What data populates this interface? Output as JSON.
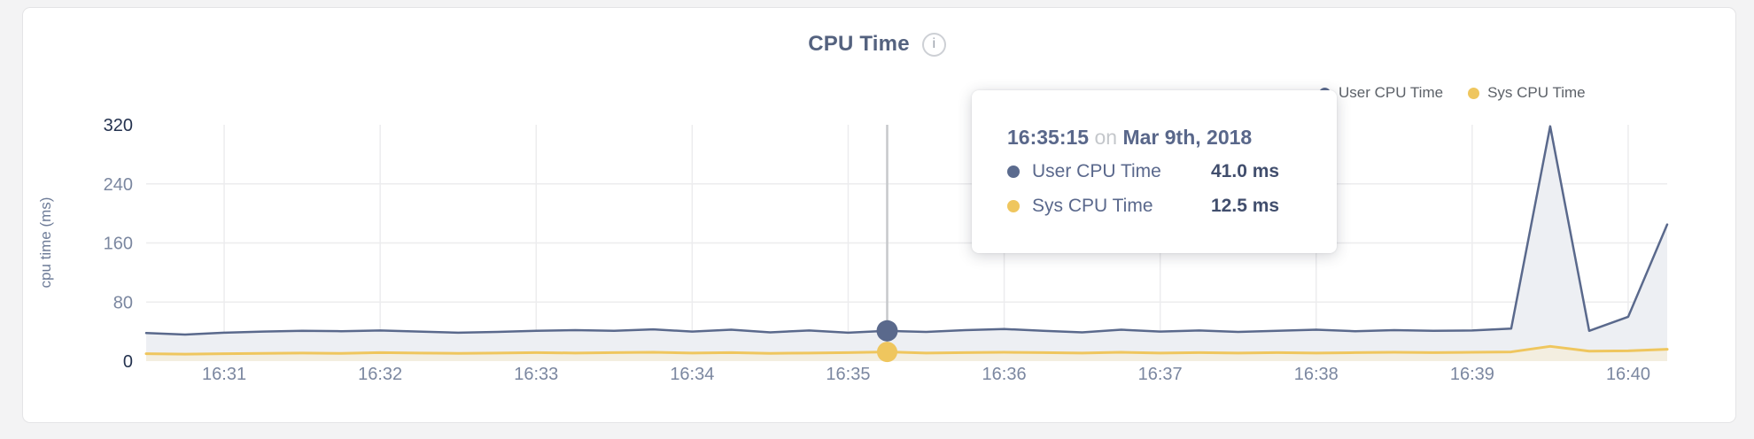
{
  "card": {
    "title": "CPU Time",
    "info_icon": "i"
  },
  "legend": [
    {
      "label": "User CPU Time",
      "color": "#5b6b8e"
    },
    {
      "label": "Sys CPU Time",
      "color": "#efc65e"
    }
  ],
  "axes": {
    "y_label": "cpu time (ms)",
    "y_ticks": [
      0,
      80,
      160,
      240,
      320
    ],
    "y_tick_dark_color": "#24324f",
    "y_tick_light_color": "#7b87a0",
    "x_ticks": [
      "16:31",
      "16:32",
      "16:33",
      "16:34",
      "16:35",
      "16:36",
      "16:37",
      "16:38",
      "16:39",
      "16:40"
    ],
    "grid_color": "#ececee",
    "hover_line_color": "#c6c8cb"
  },
  "tooltip": {
    "time": "16:35:15",
    "connector": "on",
    "date": "Mar 9th, 2018",
    "rows": [
      {
        "label": "User CPU Time",
        "value": "41.0 ms",
        "color": "#5b6b8e"
      },
      {
        "label": "Sys CPU Time",
        "value": "12.5 ms",
        "color": "#efc65e"
      }
    ]
  },
  "chart_data": {
    "type": "area",
    "title": "CPU Time",
    "ylabel": "cpu time (ms)",
    "ylim": [
      0,
      320
    ],
    "grid": true,
    "legend_position": "top-right",
    "x_ticks": [
      "16:31",
      "16:32",
      "16:33",
      "16:34",
      "16:35",
      "16:36",
      "16:37",
      "16:38",
      "16:39",
      "16:40"
    ],
    "times": [
      "16:30:30",
      "16:30:45",
      "16:31:00",
      "16:31:15",
      "16:31:30",
      "16:31:45",
      "16:32:00",
      "16:32:15",
      "16:32:30",
      "16:32:45",
      "16:33:00",
      "16:33:15",
      "16:33:30",
      "16:33:45",
      "16:34:00",
      "16:34:15",
      "16:34:30",
      "16:34:45",
      "16:35:00",
      "16:35:15",
      "16:35:30",
      "16:35:45",
      "16:36:00",
      "16:36:15",
      "16:36:30",
      "16:36:45",
      "16:37:00",
      "16:37:15",
      "16:37:30",
      "16:37:45",
      "16:38:00",
      "16:38:15",
      "16:38:30",
      "16:38:45",
      "16:39:00",
      "16:39:15",
      "16:39:30",
      "16:39:45",
      "16:40:00",
      "16:40:15"
    ],
    "series": [
      {
        "name": "User CPU Time",
        "color": "#5a698c",
        "fill": "#edeff3",
        "line_width": 2.5,
        "values": [
          38,
          36,
          38.5,
          40,
          41,
          40.5,
          41.5,
          40,
          38.5,
          39.5,
          41,
          42,
          41,
          43,
          40,
          42.5,
          39,
          41.5,
          38.5,
          41,
          39.5,
          42,
          43.5,
          41,
          39,
          42.5,
          40,
          41.5,
          39.5,
          41,
          42.5,
          40.5,
          42,
          41,
          41.5,
          44,
          318,
          41,
          60,
          185
        ]
      },
      {
        "name": "Sys CPU Time",
        "color": "#efc65e",
        "fill": "#f3eee0",
        "line_width": 3,
        "values": [
          10,
          9.5,
          10,
          10.5,
          11,
          10.5,
          11.5,
          11,
          10.5,
          11,
          11.5,
          11,
          11.5,
          12,
          11,
          11.5,
          10.5,
          11,
          11.5,
          12.5,
          11,
          11.5,
          12,
          11.5,
          11,
          12,
          11,
          11.5,
          11,
          11.5,
          11,
          11.5,
          12,
          11.5,
          12,
          12.5,
          20,
          13.5,
          14,
          16
        ]
      }
    ],
    "hover": {
      "index": 19,
      "time": "16:35:15",
      "user_ms": 41.0,
      "sys_ms": 12.5
    }
  }
}
